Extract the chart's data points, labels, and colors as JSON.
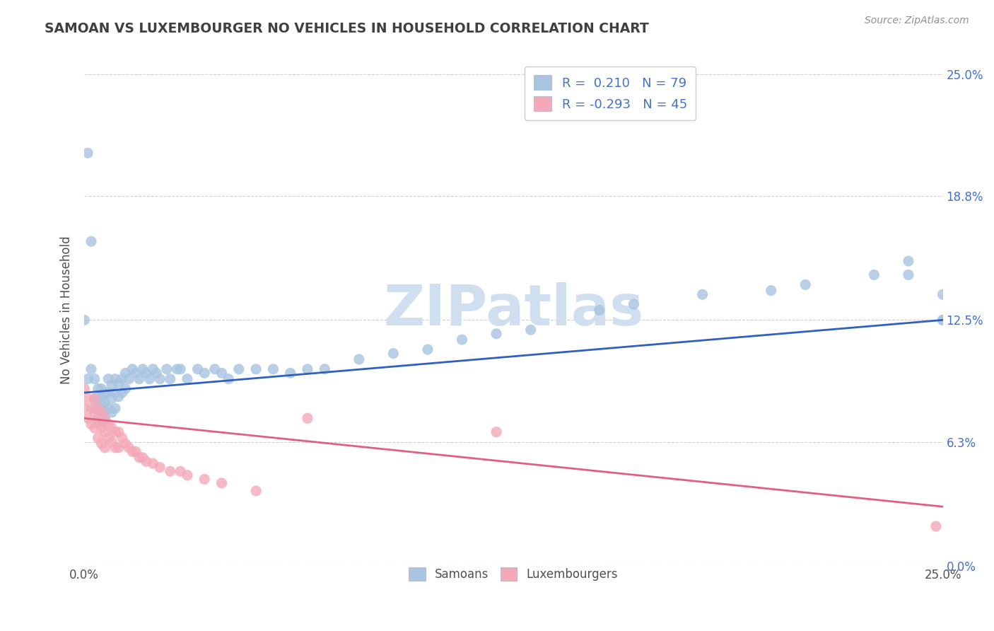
{
  "title": "SAMOAN VS LUXEMBOURGER NO VEHICLES IN HOUSEHOLD CORRELATION CHART",
  "source": "Source: ZipAtlas.com",
  "ylabel": "No Vehicles in Household",
  "xlim": [
    0.0,
    0.25
  ],
  "ylim": [
    0.0,
    0.26
  ],
  "ytick_vals": [
    0.0,
    0.063,
    0.125,
    0.188,
    0.25
  ],
  "ytick_labels": [
    "0.0%",
    "6.3%",
    "12.5%",
    "18.8%",
    "25.0%"
  ],
  "xtick_vals": [
    0.0,
    0.25
  ],
  "xtick_labels": [
    "0.0%",
    "25.0%"
  ],
  "background_color": "#ffffff",
  "grid_color": "#c8c8d0",
  "samoan_color": "#a8c4e0",
  "luxembourger_color": "#f4a8b8",
  "trendline_samoan_color": "#3060c0",
  "trendline_luxembourger_color": "#e06080",
  "title_color": "#404040",
  "source_color": "#909090",
  "ylabel_color": "#505050",
  "tick_color": "#505050",
  "watermark_color": "#d0dff0",
  "samoan_x": [
    0.0,
    0.001,
    0.001,
    0.002,
    0.002,
    0.003,
    0.003,
    0.003,
    0.004,
    0.004,
    0.004,
    0.004,
    0.005,
    0.005,
    0.005,
    0.005,
    0.005,
    0.006,
    0.006,
    0.006,
    0.006,
    0.007,
    0.007,
    0.007,
    0.008,
    0.008,
    0.008,
    0.009,
    0.009,
    0.009,
    0.01,
    0.01,
    0.011,
    0.011,
    0.012,
    0.012,
    0.013,
    0.014,
    0.015,
    0.016,
    0.017,
    0.018,
    0.019,
    0.02,
    0.021,
    0.022,
    0.024,
    0.025,
    0.027,
    0.028,
    0.03,
    0.033,
    0.035,
    0.038,
    0.04,
    0.042,
    0.045,
    0.05,
    0.055,
    0.06,
    0.065,
    0.07,
    0.08,
    0.09,
    0.1,
    0.11,
    0.12,
    0.13,
    0.15,
    0.16,
    0.18,
    0.2,
    0.21,
    0.23,
    0.24,
    0.24,
    0.25,
    0.25,
    0.25
  ],
  "samoan_y": [
    0.125,
    0.21,
    0.095,
    0.165,
    0.1,
    0.085,
    0.095,
    0.08,
    0.09,
    0.085,
    0.08,
    0.075,
    0.09,
    0.085,
    0.082,
    0.078,
    0.073,
    0.088,
    0.083,
    0.078,
    0.074,
    0.095,
    0.088,
    0.08,
    0.092,
    0.085,
    0.078,
    0.095,
    0.088,
    0.08,
    0.093,
    0.086,
    0.095,
    0.088,
    0.098,
    0.09,
    0.095,
    0.1,
    0.098,
    0.095,
    0.1,
    0.098,
    0.095,
    0.1,
    0.098,
    0.095,
    0.1,
    0.095,
    0.1,
    0.1,
    0.095,
    0.1,
    0.098,
    0.1,
    0.098,
    0.095,
    0.1,
    0.1,
    0.1,
    0.098,
    0.1,
    0.1,
    0.105,
    0.108,
    0.11,
    0.115,
    0.118,
    0.12,
    0.13,
    0.133,
    0.138,
    0.14,
    0.143,
    0.148,
    0.148,
    0.155,
    0.125,
    0.138,
    0.125
  ],
  "luxembourger_x": [
    0.0,
    0.0,
    0.001,
    0.001,
    0.002,
    0.002,
    0.003,
    0.003,
    0.003,
    0.004,
    0.004,
    0.004,
    0.005,
    0.005,
    0.005,
    0.006,
    0.006,
    0.006,
    0.007,
    0.007,
    0.008,
    0.008,
    0.009,
    0.009,
    0.01,
    0.01,
    0.011,
    0.012,
    0.013,
    0.014,
    0.015,
    0.016,
    0.017,
    0.018,
    0.02,
    0.022,
    0.025,
    0.028,
    0.03,
    0.035,
    0.04,
    0.05,
    0.065,
    0.12,
    0.248
  ],
  "luxembourger_y": [
    0.09,
    0.08,
    0.085,
    0.075,
    0.08,
    0.072,
    0.085,
    0.078,
    0.07,
    0.08,
    0.073,
    0.065,
    0.078,
    0.07,
    0.062,
    0.075,
    0.068,
    0.06,
    0.072,
    0.065,
    0.07,
    0.063,
    0.068,
    0.06,
    0.068,
    0.06,
    0.065,
    0.062,
    0.06,
    0.058,
    0.058,
    0.055,
    0.055,
    0.053,
    0.052,
    0.05,
    0.048,
    0.048,
    0.046,
    0.044,
    0.042,
    0.038,
    0.075,
    0.068,
    0.02
  ],
  "trendline_samoan_x0": 0.0,
  "trendline_samoan_y0": 0.088,
  "trendline_samoan_x1": 0.25,
  "trendline_samoan_y1": 0.125,
  "trendline_luxembourger_x0": 0.0,
  "trendline_luxembourger_y0": 0.075,
  "trendline_luxembourger_x1": 0.25,
  "trendline_luxembourger_y1": 0.03
}
